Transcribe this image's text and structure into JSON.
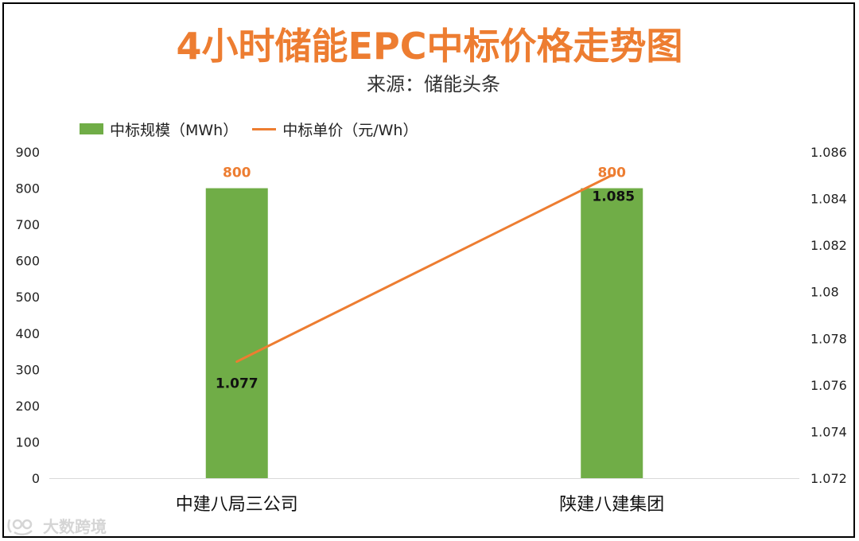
{
  "title": "4小时储能EPC中标价格走势图",
  "subtitle": "来源：储能头条",
  "watermark": "大数跨境",
  "chart_data": {
    "type": "bar",
    "categories": [
      "中建八局三公司",
      "陕建八建集团"
    ],
    "series": [
      {
        "name": "中标规模（MWh）",
        "type": "bar",
        "axis": "left",
        "values": [
          800,
          800
        ],
        "color": "#70ad47"
      },
      {
        "name": "中标单价（元/Wh）",
        "type": "line",
        "axis": "right",
        "values": [
          1.077,
          1.085
        ],
        "color": "#ed7d31"
      }
    ],
    "y_left": {
      "min": 0,
      "max": 900,
      "step": 100,
      "ticks": [
        "0",
        "100",
        "200",
        "300",
        "400",
        "500",
        "600",
        "700",
        "800",
        "900"
      ]
    },
    "y_right": {
      "min": 1.072,
      "max": 1.086,
      "step": 0.002,
      "ticks": [
        "1.072",
        "1.074",
        "1.076",
        "1.078",
        "1.08",
        "1.082",
        "1.084",
        "1.086"
      ]
    },
    "bar_labels": [
      "800",
      "800"
    ],
    "line_labels": [
      "1.077",
      "1.085"
    ],
    "legend_position": "top-left",
    "grid": false
  }
}
